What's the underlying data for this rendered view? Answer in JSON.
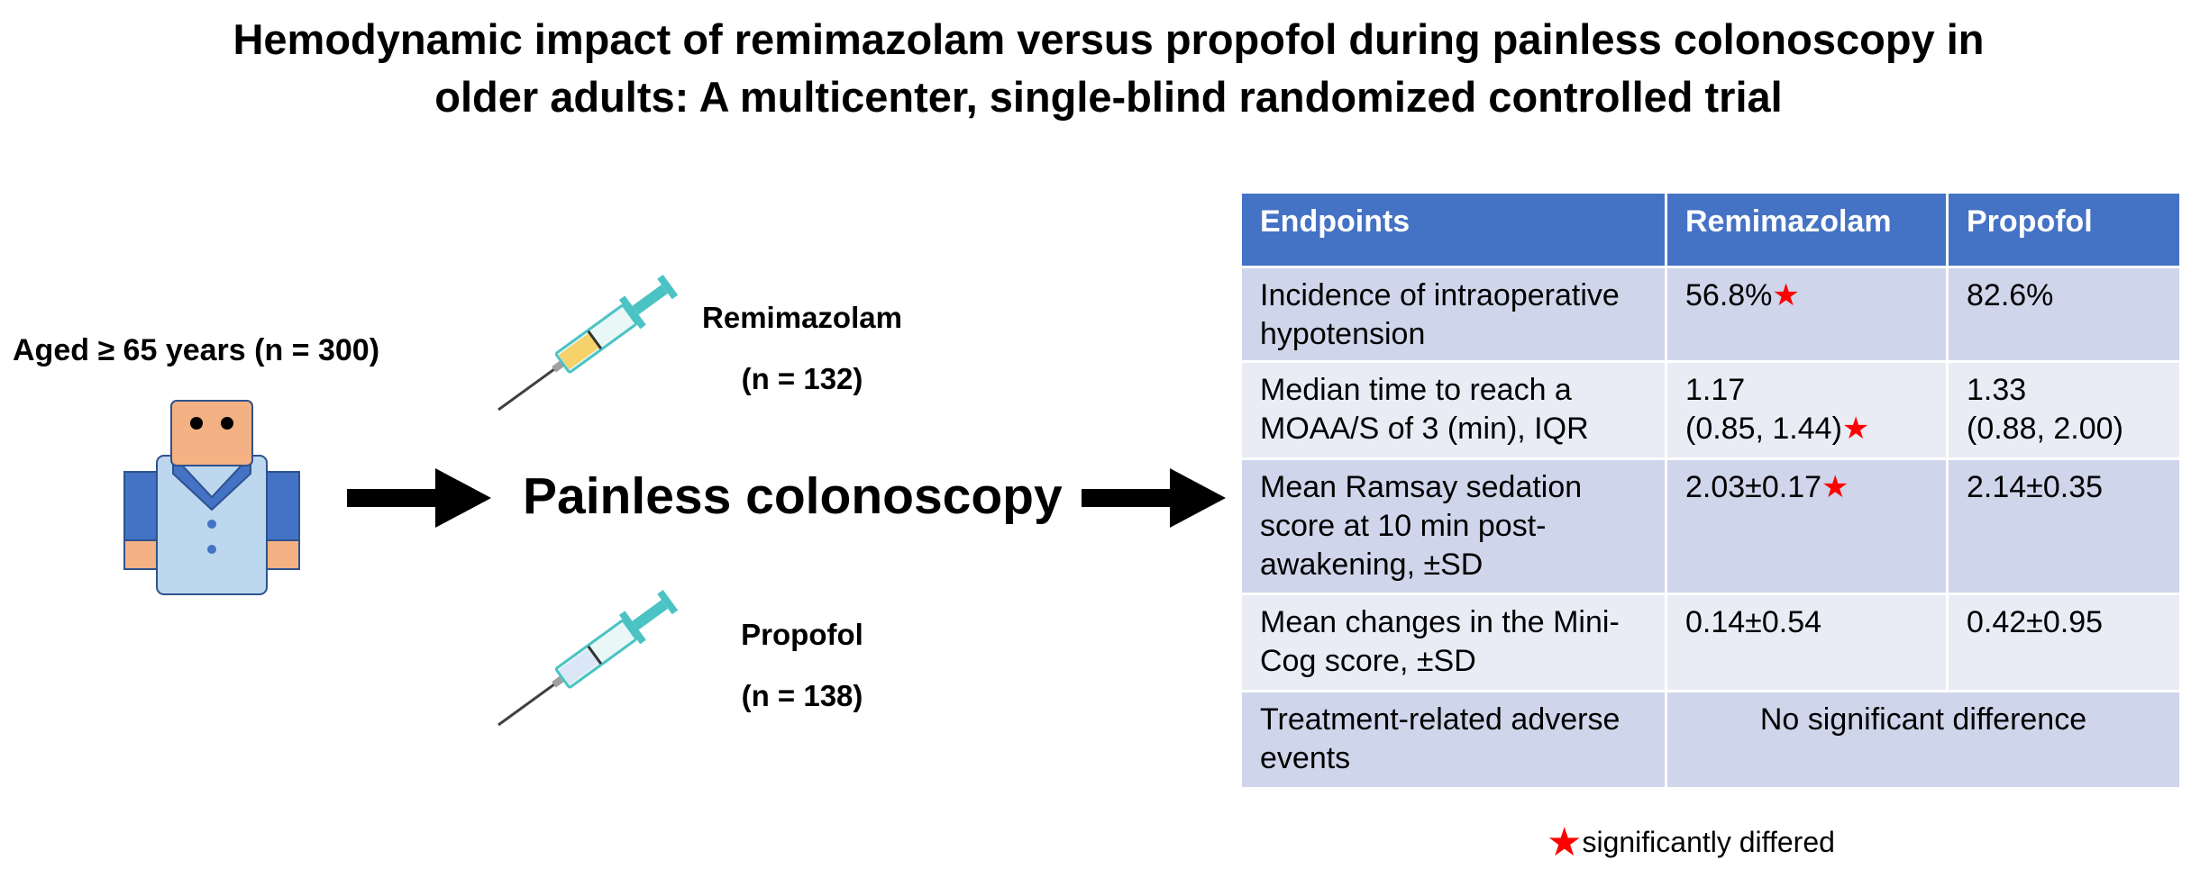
{
  "title": {
    "line1": "Hemodynamic impact of remimazolam versus propofol during painless colonoscopy in",
    "line2": "older adults: A multicenter, single-blind randomized controlled trial"
  },
  "population": {
    "label": "Aged ≥ 65 years (n = 300)"
  },
  "groups": [
    {
      "name": "Remimazolam",
      "n": "(n = 132)"
    },
    {
      "name": "Propofol",
      "n": "(n = 138)"
    }
  ],
  "procedure": "Painless colonoscopy",
  "table": {
    "headers": [
      "Endpoints",
      "Remimazolam",
      "Propofol"
    ],
    "rows": [
      {
        "endpoint": [
          "Incidence of intraoperative",
          "hypotension"
        ],
        "remimazolam": [
          "56.8%"
        ],
        "remimazolam_star": true,
        "propofol": [
          "82.6%"
        ]
      },
      {
        "endpoint": [
          "Median time to reach a",
          "MOAA/S of 3 (min), IQR"
        ],
        "remimazolam": [
          "1.17",
          "(0.85, 1.44)"
        ],
        "remimazolam_star": true,
        "propofol": [
          "1.33",
          "(0.88, 2.00)"
        ]
      },
      {
        "endpoint": [
          "Mean Ramsay sedation",
          "score at 10 min post-",
          "awakening, ±SD"
        ],
        "remimazolam": [
          "2.03±0.17"
        ],
        "remimazolam_star": true,
        "propofol": [
          "2.14±0.35"
        ]
      },
      {
        "endpoint": [
          "Mean changes in the Mini-",
          "Cog score, ±SD"
        ],
        "remimazolam": [
          "0.14±0.54"
        ],
        "remimazolam_star": false,
        "propofol": [
          "0.42±0.95"
        ]
      },
      {
        "endpoint": [
          "Treatment-related adverse",
          "events"
        ],
        "merged": "No significant difference"
      }
    ]
  },
  "footnote": {
    "symbol": "★",
    "text": "significantly differed"
  },
  "colors": {
    "header_bg": "#4472c4",
    "row_dark": "#cfd5ea",
    "row_light": "#e9ebf5",
    "star": "#ff0000",
    "syringe_barrel": "#4bc3c4",
    "person_shirt": "#bcd7ee",
    "person_arms": "#4472c4",
    "person_skin": "#f4b183"
  },
  "icons": [
    "person-icon",
    "syringe-icon",
    "arrow-right-icon",
    "star-icon"
  ]
}
